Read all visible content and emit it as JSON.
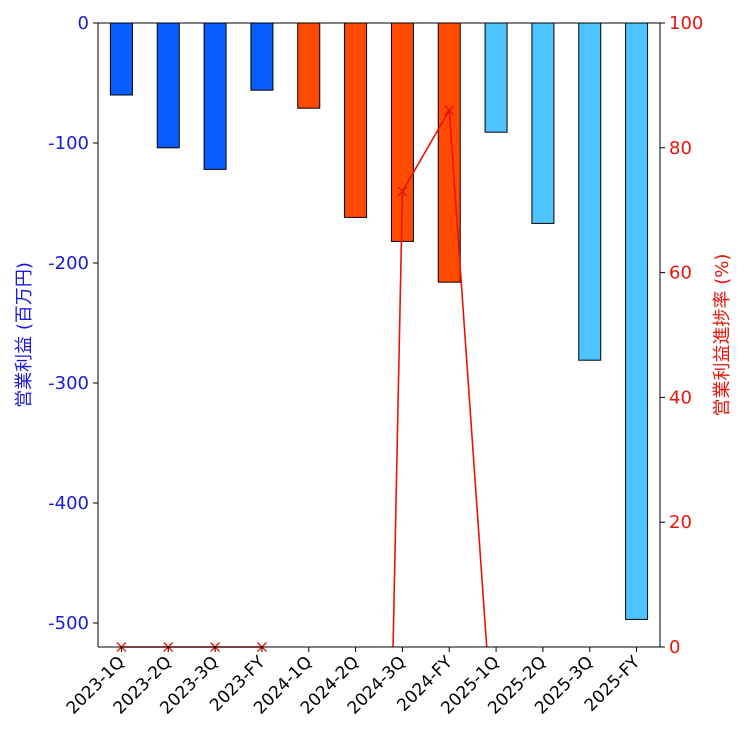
{
  "chart_data": {
    "type": "bar",
    "categories": [
      "2023-1Q",
      "2023-2Q",
      "2023-3Q",
      "2023-FY",
      "2024-1Q",
      "2024-2Q",
      "2024-3Q",
      "2024-FY",
      "2025-1Q",
      "2025-2Q",
      "2025-3Q",
      "2025-FY"
    ],
    "series": [
      {
        "axis": "left",
        "values": [
          -60,
          -104,
          -122,
          -56,
          -71,
          -162,
          -182,
          -216,
          -91,
          -167,
          -281,
          -497
        ],
        "bar_colors": [
          "#0b5cff",
          "#0b5cff",
          "#0b5cff",
          "#0b5cff",
          "#ff4a00",
          "#ff4a00",
          "#ff4a00",
          "#ff4a00",
          "#4dc3ff",
          "#4dc3ff",
          "#4dc3ff",
          "#4dc3ff"
        ]
      },
      {
        "axis": "right",
        "type": "line",
        "color": "#e8140a",
        "marker": "x",
        "values": [
          0,
          0,
          0,
          0,
          null,
          null,
          73,
          86,
          null,
          null,
          null,
          null
        ],
        "segments": [
          {
            "points": [
              [
                0,
                0
              ],
              [
                1,
                0
              ],
              [
                2,
                0
              ],
              [
                3,
                0
              ]
            ],
            "markers": true
          },
          {
            "points": [
              [
                5.8,
                0
              ],
              [
                6,
                73
              ],
              [
                7,
                86
              ],
              [
                7.8,
                0
              ]
            ],
            "markers": false
          }
        ]
      }
    ],
    "ylabel": "営業利益 (百万円)",
    "ylabel_right": "営業利益進捗率 (%)",
    "ylim": [
      -520,
      0
    ],
    "ylim_right": [
      0,
      100
    ],
    "yticks": [
      0,
      -100,
      -200,
      -300,
      -400,
      -500
    ],
    "yticks_right": [
      0,
      20,
      40,
      60,
      80,
      100
    ],
    "ytick_labels": [
      "0",
      "-100",
      "-200",
      "-300",
      "-400",
      "-500"
    ],
    "ytick_labels_right": [
      "0",
      "20",
      "40",
      "60",
      "80",
      "100"
    ],
    "left_axis_color": "#1a1adc",
    "right_axis_color": "#e8140a",
    "grid": false
  }
}
